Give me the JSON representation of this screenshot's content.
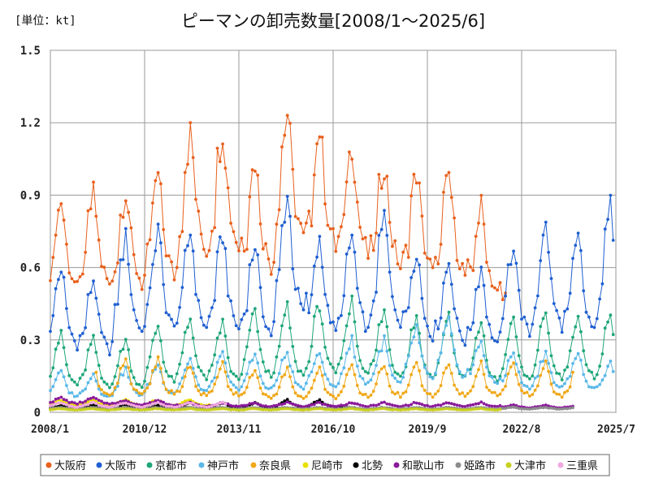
{
  "chart_data": {
    "type": "line",
    "title": "ピーマンの卸売数量[2008/1～2025/6]",
    "unit_label": "[単位：kt]",
    "xlabel": "",
    "ylabel": "",
    "ylim": [
      0,
      1.5
    ],
    "y_ticks": [
      "0",
      "0.3",
      "0.6",
      "0.9",
      "1.2",
      "1.5"
    ],
    "x_tick_labels": [
      "2008/1",
      "2010/12",
      "2013/11",
      "2016/10",
      "2019/9",
      "2022/8",
      "2025/7"
    ],
    "x_start": "2008/1",
    "x_end": "2025/7",
    "grid": true,
    "legend_position": "bottom",
    "series": [
      {
        "name": "大阪府",
        "color": "#e8601c",
        "start": "2008/1",
        "end": "2022/2",
        "pattern": [
          0.6,
          0.62,
          0.8,
          0.85,
          0.9,
          0.82,
          0.7,
          0.62,
          0.58,
          0.55,
          0.52,
          0.55
        ],
        "annual_peaks": [
          0.88,
          0.9,
          0.92,
          0.98,
          1.15,
          1.18,
          1.05,
          1.24,
          1.18,
          1.12,
          1.04,
          1.0,
          0.98,
          0.85,
          0.7
        ]
      },
      {
        "name": "大阪市",
        "color": "#1f5fd1",
        "start": "2008/1",
        "end": "2025/6",
        "pattern": [
          0.38,
          0.42,
          0.55,
          0.6,
          0.65,
          0.58,
          0.45,
          0.38,
          0.35,
          0.32,
          0.3,
          0.34
        ],
        "annual_peaks": [
          0.6,
          0.55,
          0.72,
          0.75,
          0.75,
          0.74,
          0.7,
          0.9,
          0.72,
          0.73,
          0.81,
          0.68,
          0.63,
          0.6,
          0.7,
          0.77,
          0.72,
          0.85
        ]
      },
      {
        "name": "京都市",
        "color": "#1ea67a",
        "start": "2008/1",
        "end": "2025/6",
        "pattern": [
          0.18,
          0.22,
          0.3,
          0.33,
          0.36,
          0.3,
          0.22,
          0.17,
          0.15,
          0.14,
          0.13,
          0.15
        ],
        "annual_peaks": [
          0.32,
          0.3,
          0.3,
          0.36,
          0.39,
          0.37,
          0.42,
          0.43,
          0.45,
          0.46,
          0.42,
          0.4,
          0.4,
          0.36,
          0.38,
          0.4,
          0.4,
          0.4
        ]
      },
      {
        "name": "神戸市",
        "color": "#5ab8e8",
        "start": "2008/1",
        "end": "2025/6",
        "pattern": [
          0.12,
          0.14,
          0.18,
          0.2,
          0.22,
          0.18,
          0.14,
          0.11,
          0.1,
          0.09,
          0.09,
          0.1
        ],
        "annual_peaks": [
          0.17,
          0.16,
          0.18,
          0.2,
          0.22,
          0.24,
          0.24,
          0.25,
          0.26,
          0.3,
          0.3,
          0.35,
          0.38,
          0.3,
          0.25,
          0.25,
          0.25,
          0.2
        ]
      },
      {
        "name": "奈良県",
        "color": "#f0a818",
        "start": "2009/6",
        "end": "2024/3",
        "pattern": [
          0.08,
          0.1,
          0.14,
          0.16,
          0.18,
          0.15,
          0.1,
          0.08,
          0.07,
          0.07,
          0.06,
          0.07
        ],
        "annual_peaks": [
          0.2,
          0.22,
          0.22,
          0.2,
          0.2,
          0.18,
          0.18,
          0.18,
          0.19,
          0.2,
          0.2,
          0.2,
          0.2,
          0.2,
          0.2
        ]
      },
      {
        "name": "尼崎市",
        "color": "#e8e000",
        "start": "2008/1",
        "end": "2012/12",
        "pattern": [
          0.03,
          0.035,
          0.04,
          0.045,
          0.045,
          0.04,
          0.035,
          0.03,
          0.03,
          0.025,
          0.025,
          0.03
        ],
        "annual_peaks": [
          0.05,
          0.05,
          0.05,
          0.05,
          0.05
        ]
      },
      {
        "name": "北勢",
        "color": "#000000",
        "start": "2008/1",
        "end": "2017/3",
        "pattern": [
          0.015,
          0.018,
          0.022,
          0.025,
          0.028,
          0.024,
          0.02,
          0.016,
          0.014,
          0.013,
          0.012,
          0.014
        ],
        "annual_peaks": [
          0.03,
          0.03,
          0.03,
          0.03,
          0.04,
          0.04,
          0.04,
          0.05,
          0.05,
          0.04
        ]
      },
      {
        "name": "和歌山市",
        "color": "#8a1a9b",
        "start": "2008/1",
        "end": "2024/3",
        "pattern": [
          0.03,
          0.032,
          0.036,
          0.04,
          0.042,
          0.038,
          0.034,
          0.03,
          0.028,
          0.026,
          0.025,
          0.028
        ],
        "annual_peaks": [
          0.06,
          0.06,
          0.05,
          0.05,
          0.04,
          0.04,
          0.04,
          0.04,
          0.04,
          0.04,
          0.04,
          0.04,
          0.04,
          0.04,
          0.03,
          0.03,
          0.03
        ]
      },
      {
        "name": "姫路市",
        "color": "#8c8c8c",
        "start": "2008/1",
        "end": "2024/3",
        "pattern": [
          0.01,
          0.011,
          0.012,
          0.013,
          0.013,
          0.012,
          0.011,
          0.01,
          0.009,
          0.009,
          0.009,
          0.01
        ],
        "annual_peaks": [
          0.02,
          0.02,
          0.02,
          0.02,
          0.02,
          0.02,
          0.02,
          0.02,
          0.02,
          0.02,
          0.02,
          0.02,
          0.02,
          0.02,
          0.02,
          0.02,
          0.02
        ]
      },
      {
        "name": "大津市",
        "color": "#c8d020",
        "start": "2008/1",
        "end": "2021/12",
        "pattern": [
          0.008,
          0.009,
          0.01,
          0.011,
          0.011,
          0.01,
          0.009,
          0.008,
          0.008,
          0.007,
          0.007,
          0.008
        ],
        "annual_peaks": [
          0.015,
          0.015,
          0.015,
          0.015,
          0.015,
          0.015,
          0.015,
          0.015,
          0.015,
          0.015,
          0.015,
          0.015,
          0.015,
          0.015
        ]
      },
      {
        "name": "三重県",
        "color": "#f0a8e0",
        "start": "2008/1",
        "end": "2013/6",
        "pattern": [
          0.02,
          0.022,
          0.025,
          0.028,
          0.03,
          0.027,
          0.023,
          0.02,
          0.018,
          0.017,
          0.016,
          0.018
        ],
        "annual_peaks": [
          0.04,
          0.04,
          0.04,
          0.04,
          0.04,
          0.04
        ]
      }
    ]
  }
}
